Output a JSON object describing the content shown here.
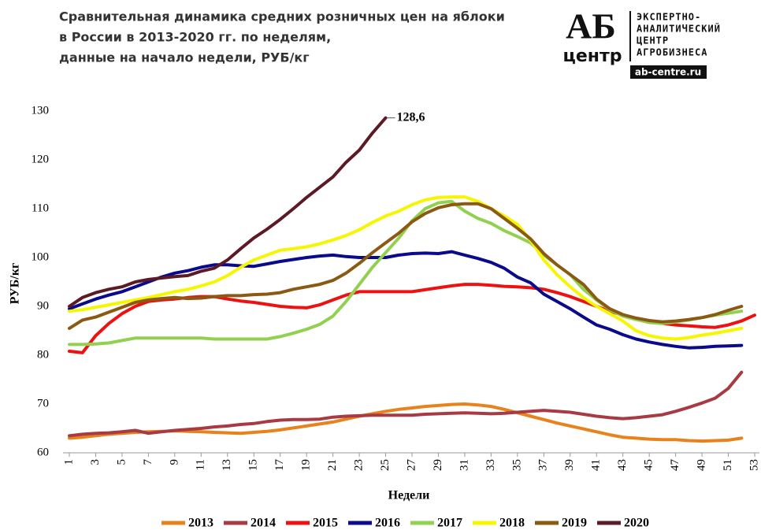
{
  "chart_data": {
    "type": "line",
    "title": [
      "Сравнительная  динамика средних розничных цен на яблоки",
      "в России в 2013-2020 гг. по неделям,",
      "данные на начало  недели, РУБ/кг"
    ],
    "xlabel": "Недели",
    "ylabel": "РУБ/кг",
    "x": [
      1,
      2,
      3,
      4,
      5,
      6,
      7,
      8,
      9,
      10,
      11,
      12,
      13,
      14,
      15,
      16,
      17,
      18,
      19,
      20,
      21,
      22,
      23,
      24,
      25,
      26,
      27,
      28,
      29,
      30,
      31,
      32,
      33,
      34,
      35,
      36,
      37,
      38,
      39,
      40,
      41,
      42,
      43,
      44,
      45,
      46,
      47,
      48,
      49,
      50,
      51,
      52,
      53
    ],
    "xlim": [
      1,
      53
    ],
    "xticks": [
      1,
      3,
      5,
      7,
      9,
      11,
      13,
      15,
      17,
      19,
      21,
      23,
      25,
      27,
      29,
      31,
      33,
      35,
      37,
      39,
      41,
      43,
      45,
      47,
      49,
      51,
      53
    ],
    "ylim": [
      60,
      130
    ],
    "yticks": [
      60,
      70,
      80,
      90,
      100,
      110,
      120,
      130
    ],
    "grid": false,
    "series": [
      {
        "name": "2013",
        "color": "#e8821c",
        "values": [
          63,
          63.2,
          63.5,
          63.8,
          64,
          64.2,
          64.3,
          64.4,
          64.5,
          64.4,
          64.3,
          64.2,
          64.1,
          64,
          64.2,
          64.4,
          64.7,
          65.1,
          65.5,
          65.9,
          66.3,
          66.9,
          67.5,
          68,
          68.5,
          68.9,
          69.2,
          69.5,
          69.7,
          69.9,
          70,
          69.8,
          69.5,
          68.9,
          68.2,
          67.5,
          66.8,
          66.1,
          65.5,
          64.9,
          64.3,
          63.7,
          63.2,
          63,
          62.8,
          62.7,
          62.7,
          62.5,
          62.4,
          62.5,
          62.6,
          63,
          null
        ]
      },
      {
        "name": "2014",
        "color": "#a83a44",
        "values": [
          63.5,
          63.8,
          64,
          64.1,
          64.3,
          64.6,
          64,
          64.3,
          64.6,
          64.8,
          65,
          65.3,
          65.5,
          65.8,
          66,
          66.4,
          66.7,
          66.8,
          66.8,
          66.9,
          67.3,
          67.5,
          67.6,
          67.7,
          67.7,
          67.7,
          67.7,
          67.9,
          68,
          68.1,
          68.2,
          68.1,
          68,
          68.1,
          68.3,
          68.5,
          68.7,
          68.5,
          68.3,
          67.9,
          67.5,
          67.2,
          67,
          67.2,
          67.5,
          67.8,
          68.5,
          69.3,
          70.2,
          71.2,
          73.2,
          76.5,
          null
        ]
      },
      {
        "name": "2015",
        "color": "#ee1111",
        "values": [
          80.8,
          80.5,
          84,
          86.5,
          88.5,
          90,
          91,
          91.3,
          91.5,
          91.8,
          92,
          92,
          91.5,
          91.1,
          90.8,
          90.4,
          90,
          89.8,
          89.7,
          90.3,
          91.3,
          92.3,
          93,
          93,
          93,
          93,
          93,
          93.4,
          93.8,
          94.2,
          94.5,
          94.5,
          94.3,
          94.1,
          94,
          93.8,
          93.5,
          92.8,
          92,
          91,
          90,
          89,
          88.2,
          87.5,
          87,
          86.5,
          86.2,
          86,
          85.8,
          85.7,
          86.2,
          87,
          88.2
        ]
      },
      {
        "name": "2016",
        "color": "#0a0a8c",
        "values": [
          89.5,
          90.5,
          91.5,
          92.3,
          93,
          94,
          95,
          96,
          96.8,
          97.3,
          98,
          98.5,
          98.5,
          98.3,
          98.2,
          98.7,
          99.2,
          99.6,
          100,
          100.3,
          100.5,
          100.2,
          100,
          100,
          100,
          100.5,
          100.8,
          100.9,
          100.8,
          101.2,
          100.5,
          99.8,
          99,
          97.8,
          96,
          94.8,
          92.5,
          91,
          89.5,
          87.8,
          86.2,
          85.3,
          84.2,
          83.3,
          82.7,
          82.2,
          81.8,
          81.5,
          81.6,
          81.8,
          81.9,
          82,
          null
        ]
      },
      {
        "name": "2017",
        "color": "#92d050",
        "values": [
          82.2,
          82.2,
          82.3,
          82.5,
          83,
          83.5,
          83.5,
          83.5,
          83.5,
          83.5,
          83.5,
          83.3,
          83.3,
          83.3,
          83.3,
          83.3,
          83.8,
          84.5,
          85.3,
          86.3,
          88,
          91,
          94.5,
          98,
          101,
          104,
          107.5,
          110,
          111.2,
          111.5,
          109.5,
          108,
          107,
          105.5,
          104.3,
          103,
          100.5,
          98.5,
          96.5,
          93.5,
          91.3,
          89.3,
          88,
          87.3,
          86.7,
          86.5,
          86.8,
          87.2,
          87.7,
          88.2,
          88.6,
          89,
          null
        ]
      },
      {
        "name": "2018",
        "color": "#f6f600",
        "values": [
          89,
          89.3,
          89.8,
          90.3,
          90.8,
          91.3,
          91.8,
          92.4,
          93,
          93.5,
          94.2,
          95,
          96.3,
          98,
          99.5,
          100.5,
          101.5,
          101.8,
          102.2,
          102.8,
          103.6,
          104.5,
          105.7,
          107.2,
          108.5,
          109.5,
          110.8,
          111.8,
          112.3,
          112.4,
          112.4,
          111.5,
          110,
          108.5,
          106.8,
          103.5,
          99.5,
          96.5,
          94,
          91.8,
          90,
          88.5,
          87,
          85,
          84,
          83.5,
          83.3,
          83.6,
          84.1,
          84.5,
          85,
          85.5,
          null
        ]
      },
      {
        "name": "2019",
        "color": "#8b5a12",
        "values": [
          85.5,
          87.2,
          87.8,
          88.8,
          89.8,
          90.8,
          91.3,
          91.6,
          91.8,
          91.6,
          91.7,
          92,
          92.2,
          92.2,
          92.4,
          92.5,
          92.8,
          93.5,
          94,
          94.5,
          95.3,
          96.8,
          98.8,
          101,
          103,
          105,
          107.3,
          109,
          110.2,
          110.8,
          111,
          111,
          110,
          108,
          106,
          103.8,
          100.8,
          98.5,
          96.5,
          94.5,
          91.5,
          89.5,
          88.3,
          87.6,
          87.1,
          86.8,
          87,
          87.3,
          87.7,
          88.3,
          89.2,
          90,
          null
        ]
      },
      {
        "name": "2020",
        "color": "#5c1a26",
        "values": [
          90,
          91.8,
          92.8,
          93.5,
          94,
          95,
          95.5,
          95.8,
          96.1,
          96.3,
          97.2,
          97.8,
          99.5,
          101.8,
          104,
          105.8,
          107.8,
          110,
          112.3,
          114.4,
          116.5,
          119.5,
          122,
          125.5,
          128.6,
          null,
          null,
          null,
          null,
          null,
          null,
          null,
          null,
          null,
          null,
          null,
          null,
          null,
          null,
          null,
          null,
          null,
          null,
          null,
          null,
          null,
          null,
          null,
          null,
          null,
          null,
          null,
          null
        ],
        "value_labels": [
          null,
          null,
          null,
          null,
          null,
          null,
          null,
          null,
          null,
          null,
          null,
          null,
          null,
          null,
          null,
          null,
          null,
          null,
          null,
          null,
          null,
          null,
          null,
          null,
          "128,6",
          null,
          null,
          null,
          null,
          null,
          null,
          null,
          null,
          null,
          null,
          null,
          null,
          null,
          null,
          null,
          null,
          null,
          null,
          null,
          null,
          null,
          null,
          null,
          null,
          null,
          null,
          null,
          null
        ]
      }
    ]
  },
  "logo": {
    "mark_top": "АБ",
    "mark_bottom": "центр",
    "lines": [
      "ЭКСПЕРТНО-",
      "АНАЛИТИЧЕСКИЙ",
      "ЦЕНТР",
      "АГРОБИЗНЕСА"
    ],
    "url": "ab-centre.ru"
  }
}
